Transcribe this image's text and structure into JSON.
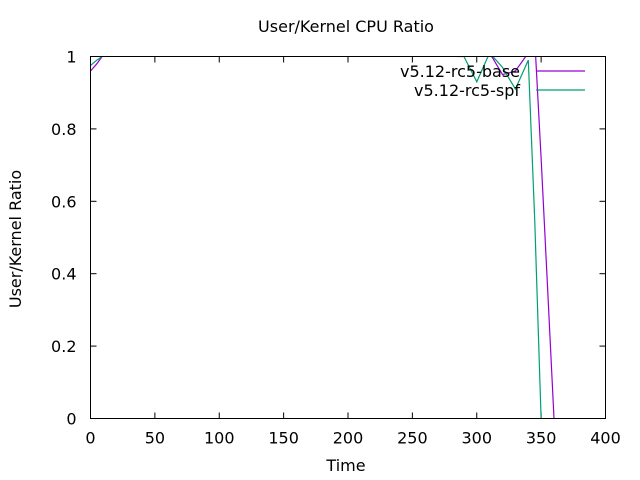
{
  "chart_data": {
    "type": "line",
    "title": "User/Kernel CPU Ratio",
    "xlabel": "Time",
    "ylabel": "User/Kernel Ratio",
    "xlim": [
      0,
      400
    ],
    "ylim": [
      0,
      1
    ],
    "xticks": [
      0,
      50,
      100,
      150,
      200,
      250,
      300,
      350,
      400
    ],
    "yticks": [
      0,
      0.2,
      0.4,
      0.6,
      0.8,
      1
    ],
    "grid": false,
    "legend_position": "top-right",
    "series": [
      {
        "name": "v5.12-rc5-base",
        "color": "#9400d3",
        "x": [
          0,
          5,
          9,
          12,
          290,
          300,
          310,
          320,
          330,
          340,
          345,
          350,
          355,
          360
        ],
        "y": [
          0.96,
          0.98,
          1.0,
          1.01,
          1.01,
          1.03,
          1.01,
          0.95,
          0.96,
          1.01,
          1.05,
          0.72,
          0.36,
          0.0
        ]
      },
      {
        "name": "v5.12-rc5-spf",
        "color": "#009e73",
        "x": [
          0,
          5,
          9,
          12,
          290,
          300,
          310,
          320,
          330,
          340,
          345,
          350
        ],
        "y": [
          0.975,
          0.99,
          1.0,
          1.01,
          1.0,
          0.93,
          1.01,
          0.97,
          0.91,
          0.99,
          0.55,
          0.0
        ]
      }
    ]
  }
}
